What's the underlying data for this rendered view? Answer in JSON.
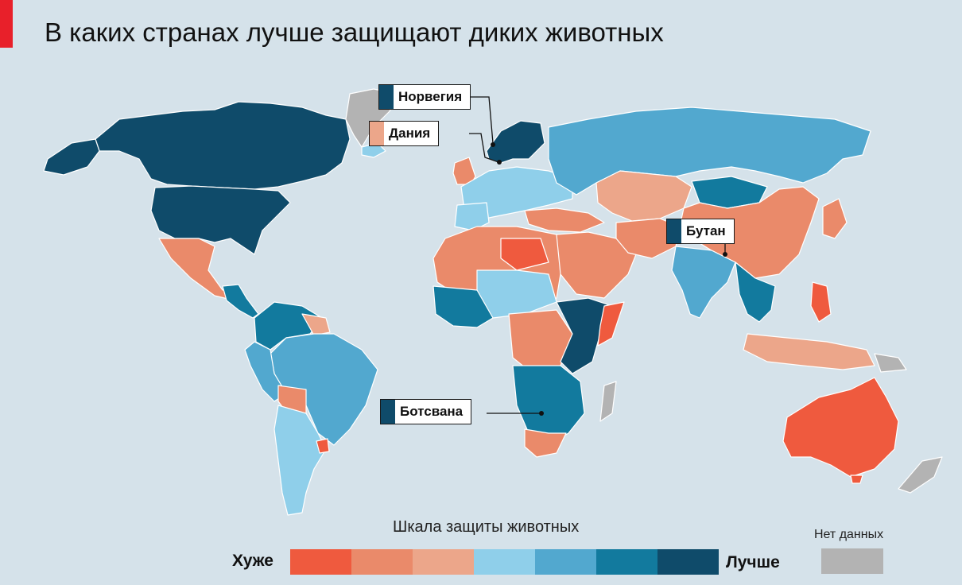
{
  "title": "В каких странах лучше защищают диких животных",
  "colors": {
    "accent": "#e8202a",
    "ocean": "#d5e2ea",
    "border": "#ffffff",
    "scale": [
      "#ef5a3e",
      "#ea8a6a",
      "#eca68a",
      "#8fcfea",
      "#52a8cf",
      "#127a9e",
      "#0f4b6a"
    ],
    "no_data": "#b3b3b3"
  },
  "callouts": [
    {
      "label": "Норвегия",
      "level": 7
    },
    {
      "label": "Дания",
      "level": 3
    },
    {
      "label": "Бутан",
      "level": 7
    },
    {
      "label": "Ботсвана",
      "level": 7
    }
  ],
  "legend": {
    "title": "Шкала защиты животных",
    "worse": "Хуже",
    "better": "Лучше",
    "no_data": "Нет данных"
  }
}
